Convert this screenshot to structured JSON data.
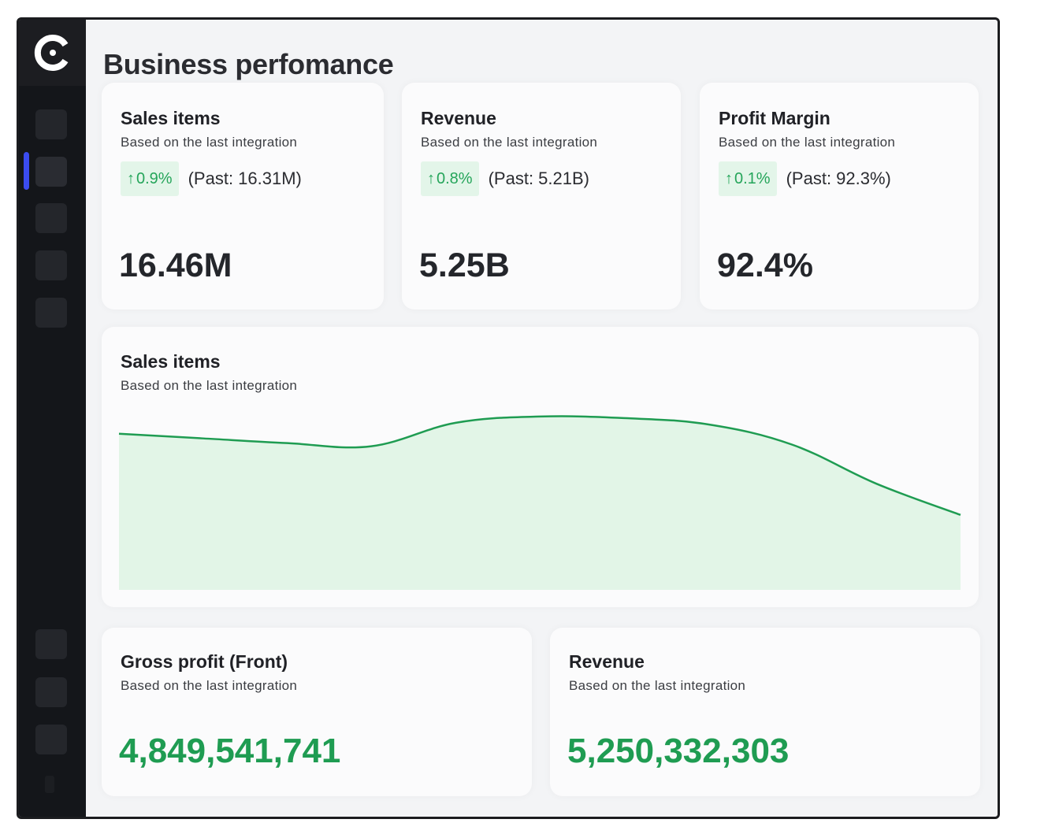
{
  "page": {
    "title": "Business perfomance"
  },
  "colors": {
    "accent": "#25a55a",
    "nav_indicator": "#3b4cf0",
    "chart_fill": "#e2f5e7"
  },
  "sidebar": {
    "logo_icon": "brand-logo-icon",
    "items": [
      {
        "name": "nav-item-1",
        "active": false
      },
      {
        "name": "nav-item-2",
        "active": true
      },
      {
        "name": "nav-item-3",
        "active": false
      },
      {
        "name": "nav-item-4",
        "active": false
      },
      {
        "name": "nav-item-5",
        "active": false
      },
      {
        "name": "nav-item-6",
        "active": false
      },
      {
        "name": "nav-item-7",
        "active": false
      },
      {
        "name": "nav-item-8",
        "active": false
      }
    ]
  },
  "kpis": [
    {
      "title": "Sales items",
      "subtitle": "Based on the last integration",
      "delta": "0.9%",
      "past": "(Past: 16.31M)",
      "value": "16.46M"
    },
    {
      "title": "Revenue",
      "subtitle": "Based on the last integration",
      "delta": "0.8%",
      "past": "(Past: 5.21B)",
      "value": "5.25B"
    },
    {
      "title": "Profit Margin",
      "subtitle": "Based on the last integration",
      "delta": "0.1%",
      "past": "(Past: 92.3%)",
      "value": "92.4%"
    }
  ],
  "sales_chart": {
    "title": "Sales items",
    "subtitle": "Based on the last integration"
  },
  "chart_data": {
    "type": "area",
    "title": "Sales items",
    "x": [
      0,
      1,
      2,
      3,
      4,
      5,
      6,
      7,
      8,
      9,
      10
    ],
    "values": [
      100,
      97,
      94,
      92,
      107,
      111,
      110,
      106,
      93,
      68,
      48
    ],
    "ylim": [
      0,
      115
    ],
    "grid": false,
    "line_color": "#1f9c52",
    "fill_color": "#e2f5e7"
  },
  "totals": [
    {
      "title": "Gross profit (Front)",
      "subtitle": "Based on the last integration",
      "value": "4,849,541,741"
    },
    {
      "title": "Revenue",
      "subtitle": "Based on the last integration",
      "value": "5,250,332,303"
    }
  ]
}
